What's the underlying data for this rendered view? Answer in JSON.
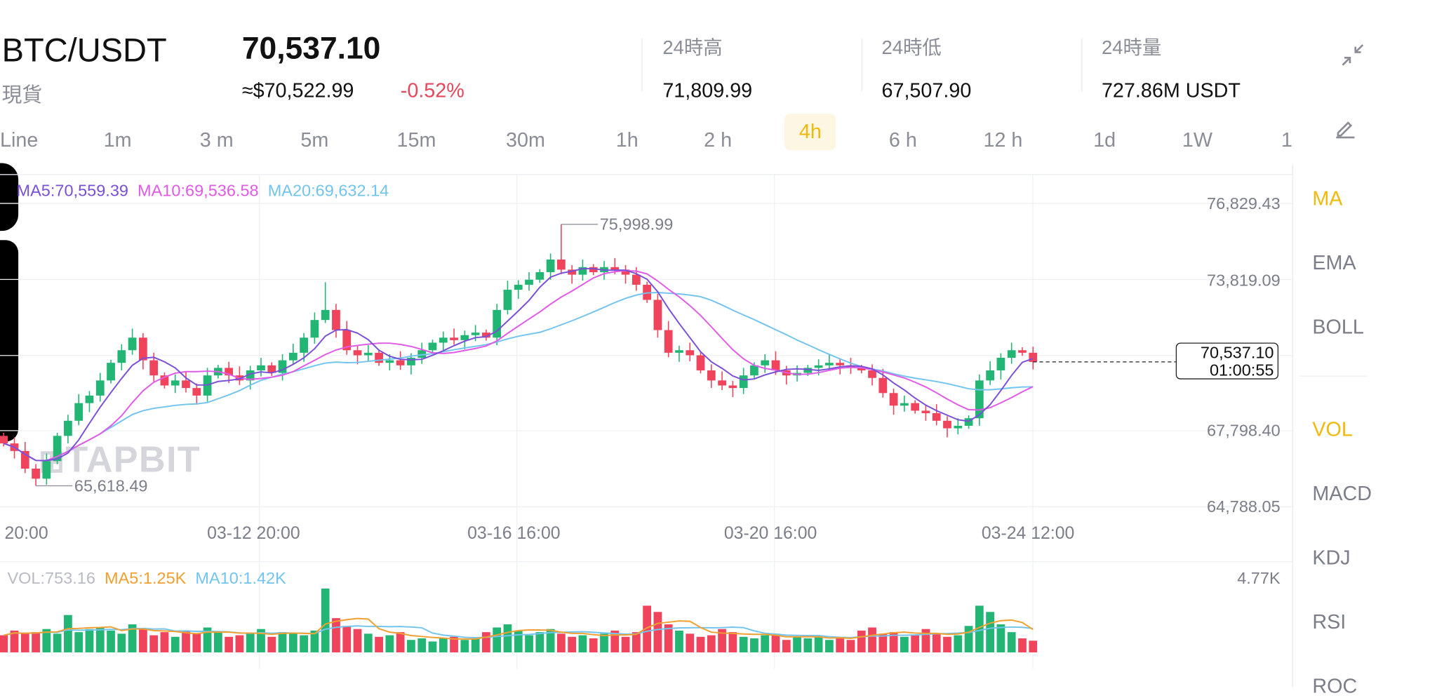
{
  "header": {
    "pair": "BTC/USDT",
    "market": "現貨",
    "price": "70,537.10",
    "approx_usd": "≈$70,522.99",
    "change": "-0.52%",
    "stats": [
      {
        "label": "24時高",
        "value": "71,809.99"
      },
      {
        "label": "24時低",
        "value": "67,507.90"
      },
      {
        "label": "24時量",
        "value": "727.86M USDT"
      }
    ]
  },
  "icons": {
    "collapse": "collapse-arrows-icon",
    "edit": "pencil-icon"
  },
  "timeframes": [
    "Line",
    "1m",
    "3 m",
    "5m",
    "15m",
    "30m",
    "1h",
    "2 h",
    "4h",
    "6 h",
    "12 h",
    "1d",
    "1W",
    "1"
  ],
  "selected_timeframe": "4h",
  "indicators": {
    "main": [
      "MA",
      "EMA",
      "BOLL"
    ],
    "sub": [
      "VOL",
      "MACD",
      "KDJ",
      "RSI",
      "ROC"
    ],
    "active": [
      "MA",
      "VOL"
    ]
  },
  "legend": {
    "ma5": "MA5:70,559.39",
    "ma10": "MA10:69,536.58",
    "ma20": "MA20:69,632.14"
  },
  "vol_legend": {
    "vol": "VOL:753.16",
    "ma5": "MA5:1.25K",
    "ma10": "MA10:1.42K",
    "max": "4.77K"
  },
  "watermark": "TAPBIT",
  "colors": {
    "up": "#22b573",
    "down": "#f0435c",
    "ma5": "#7a4fd8",
    "ma10": "#e05ae6",
    "ma20": "#72c4ee",
    "vol_ma5": "#f0a030",
    "accent": "#f0b90b"
  },
  "chart_data": {
    "type": "candlestick",
    "price_axis": [
      "76,829.43",
      "73,819.09",
      "67,798.40",
      "64,788.05"
    ],
    "ylim": [
      64788.05,
      76829.43
    ],
    "date_labels": [
      "20:00",
      "03-12 20:00",
      "03-16 16:00",
      "03-20 16:00",
      "03-24 12:00"
    ],
    "high_label": "75,998.99",
    "low_label": "65,618.49",
    "current_price": "70,537.10",
    "countdown": "01:00:55",
    "closes_k": [
      67.3,
      67.0,
      66.3,
      65.9,
      66.6,
      67.6,
      68.2,
      68.9,
      69.2,
      69.8,
      70.5,
      71.0,
      71.5,
      70.6,
      70.0,
      69.6,
      69.8,
      69.5,
      69.2,
      70.0,
      70.3,
      70.0,
      69.8,
      70.2,
      70.4,
      70.1,
      70.6,
      70.9,
      71.5,
      72.2,
      72.6,
      71.8,
      71.0,
      70.8,
      70.9,
      70.5,
      70.6,
      70.4,
      70.7,
      71.0,
      71.3,
      71.5,
      71.4,
      71.6,
      71.7,
      71.5,
      72.6,
      73.4,
      73.6,
      73.8,
      74.1,
      74.6,
      74.2,
      74.0,
      74.3,
      74.1,
      74.3,
      74.2,
      74.0,
      73.6,
      73.0,
      71.8,
      70.9,
      71.0,
      70.8,
      70.2,
      69.8,
      69.6,
      69.5,
      70.0,
      70.4,
      70.6,
      70.2,
      70.0,
      70.1,
      70.3,
      70.4,
      70.5,
      70.4,
      70.3,
      70.2,
      69.9,
      69.3,
      68.8,
      68.9,
      68.6,
      68.5,
      68.2,
      67.9,
      68.0,
      68.3,
      69.8,
      70.2,
      70.7,
      71.0,
      70.9,
      70.537
    ],
    "volumes_k": [
      1.1,
      1.4,
      1.2,
      1.3,
      1.5,
      1.2,
      2.4,
      1.3,
      1.5,
      1.6,
      1.4,
      1.2,
      1.8,
      1.5,
      1.1,
      1.3,
      1.0,
      1.4,
      1.2,
      1.6,
      1.3,
      1.0,
      1.1,
      1.2,
      1.5,
      1.0,
      1.3,
      1.2,
      1.1,
      1.4,
      4.1,
      2.2,
      1.7,
      1.5,
      1.2,
      1.0,
      1.1,
      1.3,
      0.8,
      0.9,
      0.7,
      0.9,
      1.0,
      0.8,
      0.9,
      1.3,
      1.6,
      1.8,
      1.4,
      1.1,
      1.3,
      1.5,
      1.2,
      1.0,
      1.1,
      0.9,
      1.2,
      1.4,
      1.0,
      1.3,
      3.0,
      2.6,
      1.8,
      1.4,
      1.2,
      1.0,
      1.1,
      1.5,
      1.3,
      1.0,
      0.9,
      1.1,
      1.2,
      0.8,
      1.0,
      0.9,
      1.1,
      0.8,
      0.9,
      0.8,
      1.4,
      1.6,
      1.2,
      1.3,
      1.0,
      1.1,
      1.5,
      1.2,
      1.0,
      1.1,
      1.7,
      3.0,
      2.6,
      1.8,
      1.3,
      0.9,
      0.75
    ]
  }
}
